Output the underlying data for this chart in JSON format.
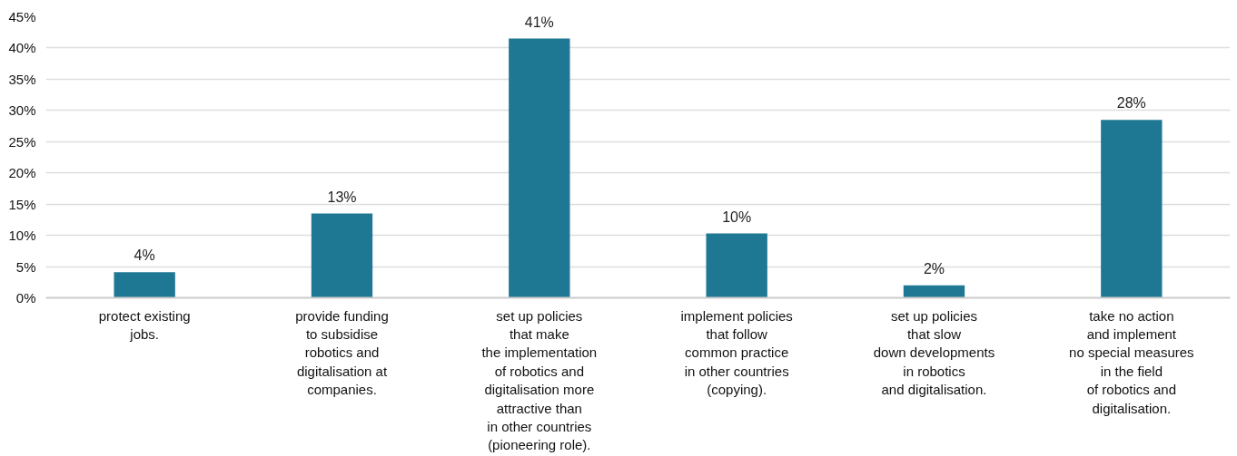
{
  "chart_data": {
    "type": "bar",
    "categories": [
      "protect existing\njobs.",
      "provide funding\nto subsidise\nrobotics and\ndigitalisation at\ncompanies.",
      "set up policies\nthat make\nthe implementation\nof robotics and\ndigitalisation more\nattractive than\nin other countries\n(pioneering role).",
      "implement policies\nthat follow\ncommon practice\nin other countries\n(copying).",
      "set up policies\nthat slow\ndown developments\nin robotics\nand digitalisation.",
      "take no action\nand implement\nno special measures\nin the field\nof robotics and\ndigitalisation."
    ],
    "values": [
      4.1,
      13.5,
      41.5,
      10.3,
      2,
      28.5
    ],
    "value_labels": [
      "4%",
      "13%",
      "41%",
      "10%",
      "2%",
      "28%"
    ],
    "color": "#1f7893",
    "ylim": [
      0,
      45
    ],
    "yticks": [
      {
        "value": 0,
        "label": "0%"
      },
      {
        "value": 5,
        "label": "5%"
      },
      {
        "value": 10,
        "label": "10%"
      },
      {
        "value": 15,
        "label": "15%"
      },
      {
        "value": 20,
        "label": "20%"
      },
      {
        "value": 25,
        "label": "25%"
      },
      {
        "value": 30,
        "label": "30%"
      },
      {
        "value": 35,
        "label": "35%"
      },
      {
        "value": 40,
        "label": "40%"
      },
      {
        "value": 45,
        "label": "45%"
      }
    ],
    "grid": "y"
  }
}
